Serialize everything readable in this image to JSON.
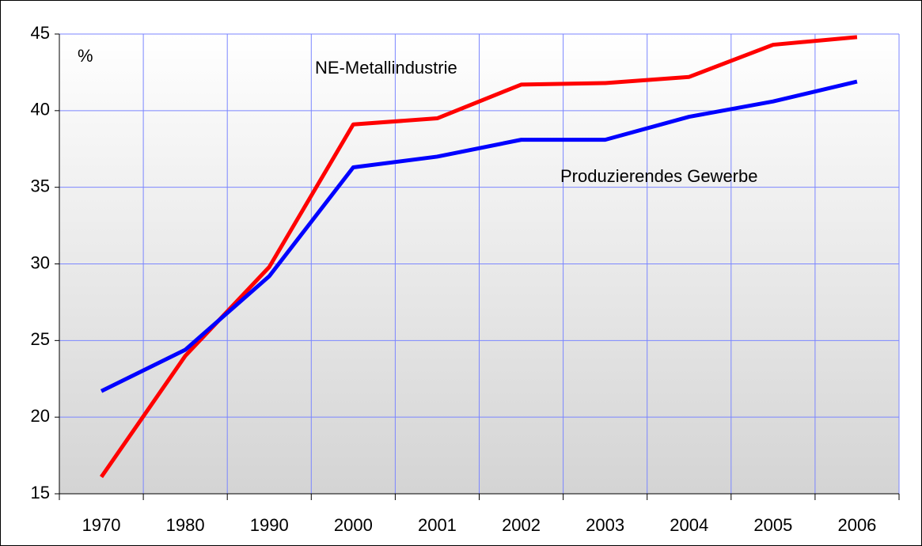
{
  "chart_data": {
    "type": "line",
    "y_label": "%",
    "categories": [
      "1970",
      "1980",
      "1990",
      "2000",
      "2001",
      "2002",
      "2003",
      "2004",
      "2005",
      "2006"
    ],
    "series": [
      {
        "name": "NE-Metallindustrie",
        "color": "#ff0000",
        "values": [
          16.1,
          24.0,
          29.8,
          39.1,
          39.5,
          41.7,
          41.8,
          42.2,
          44.3,
          44.8
        ]
      },
      {
        "name": "Produzierendes Gewerbe",
        "color": "#0000ff",
        "values": [
          21.7,
          24.4,
          29.2,
          36.3,
          37.0,
          38.1,
          38.1,
          39.6,
          40.6,
          41.9
        ]
      }
    ],
    "ylim": [
      15,
      45
    ],
    "yticks": [
      15,
      20,
      25,
      30,
      35,
      40,
      45
    ],
    "grid": true,
    "grid_color": "#7b86ff"
  }
}
